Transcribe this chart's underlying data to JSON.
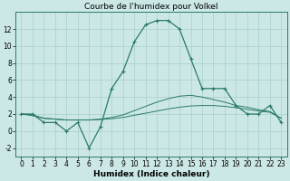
{
  "title": "Courbe de l'humidex pour Volkel",
  "xlabel": "Humidex (Indice chaleur)",
  "bg_color": "#cce8e6",
  "grid_color": "#a8cece",
  "line_color": "#2a7a6a",
  "x": [
    0,
    1,
    2,
    3,
    4,
    5,
    6,
    7,
    8,
    9,
    10,
    11,
    12,
    13,
    14,
    15,
    16,
    17,
    18,
    19,
    20,
    21,
    22,
    23
  ],
  "y_main": [
    2,
    2,
    1,
    1,
    0,
    1,
    -2,
    0.5,
    5,
    7,
    10.5,
    12.5,
    13,
    13,
    12,
    8.5,
    5,
    5,
    5,
    3,
    2,
    2,
    3,
    1
  ],
  "y_line2": [
    2,
    1.8,
    1.5,
    1.4,
    1.3,
    1.3,
    1.3,
    1.35,
    1.45,
    1.6,
    1.85,
    2.1,
    2.35,
    2.6,
    2.8,
    2.95,
    3.0,
    3.0,
    2.9,
    2.75,
    2.55,
    2.35,
    2.2,
    1.5
  ],
  "y_line3": [
    2,
    1.9,
    1.5,
    1.4,
    1.3,
    1.3,
    1.3,
    1.4,
    1.6,
    1.9,
    2.4,
    2.9,
    3.4,
    3.8,
    4.1,
    4.2,
    4.0,
    3.7,
    3.4,
    3.0,
    2.8,
    2.5,
    2.3,
    1.5
  ],
  "ylim": [
    -3,
    14
  ],
  "xlim": [
    -0.5,
    23.5
  ],
  "yticks": [
    -2,
    0,
    2,
    4,
    6,
    8,
    10,
    12
  ],
  "xticks": [
    0,
    1,
    2,
    3,
    4,
    5,
    6,
    7,
    8,
    9,
    10,
    11,
    12,
    13,
    14,
    15,
    16,
    17,
    18,
    19,
    20,
    21,
    22,
    23
  ],
  "title_fontsize": 6.5,
  "label_fontsize": 6.5,
  "tick_fontsize": 5.5
}
